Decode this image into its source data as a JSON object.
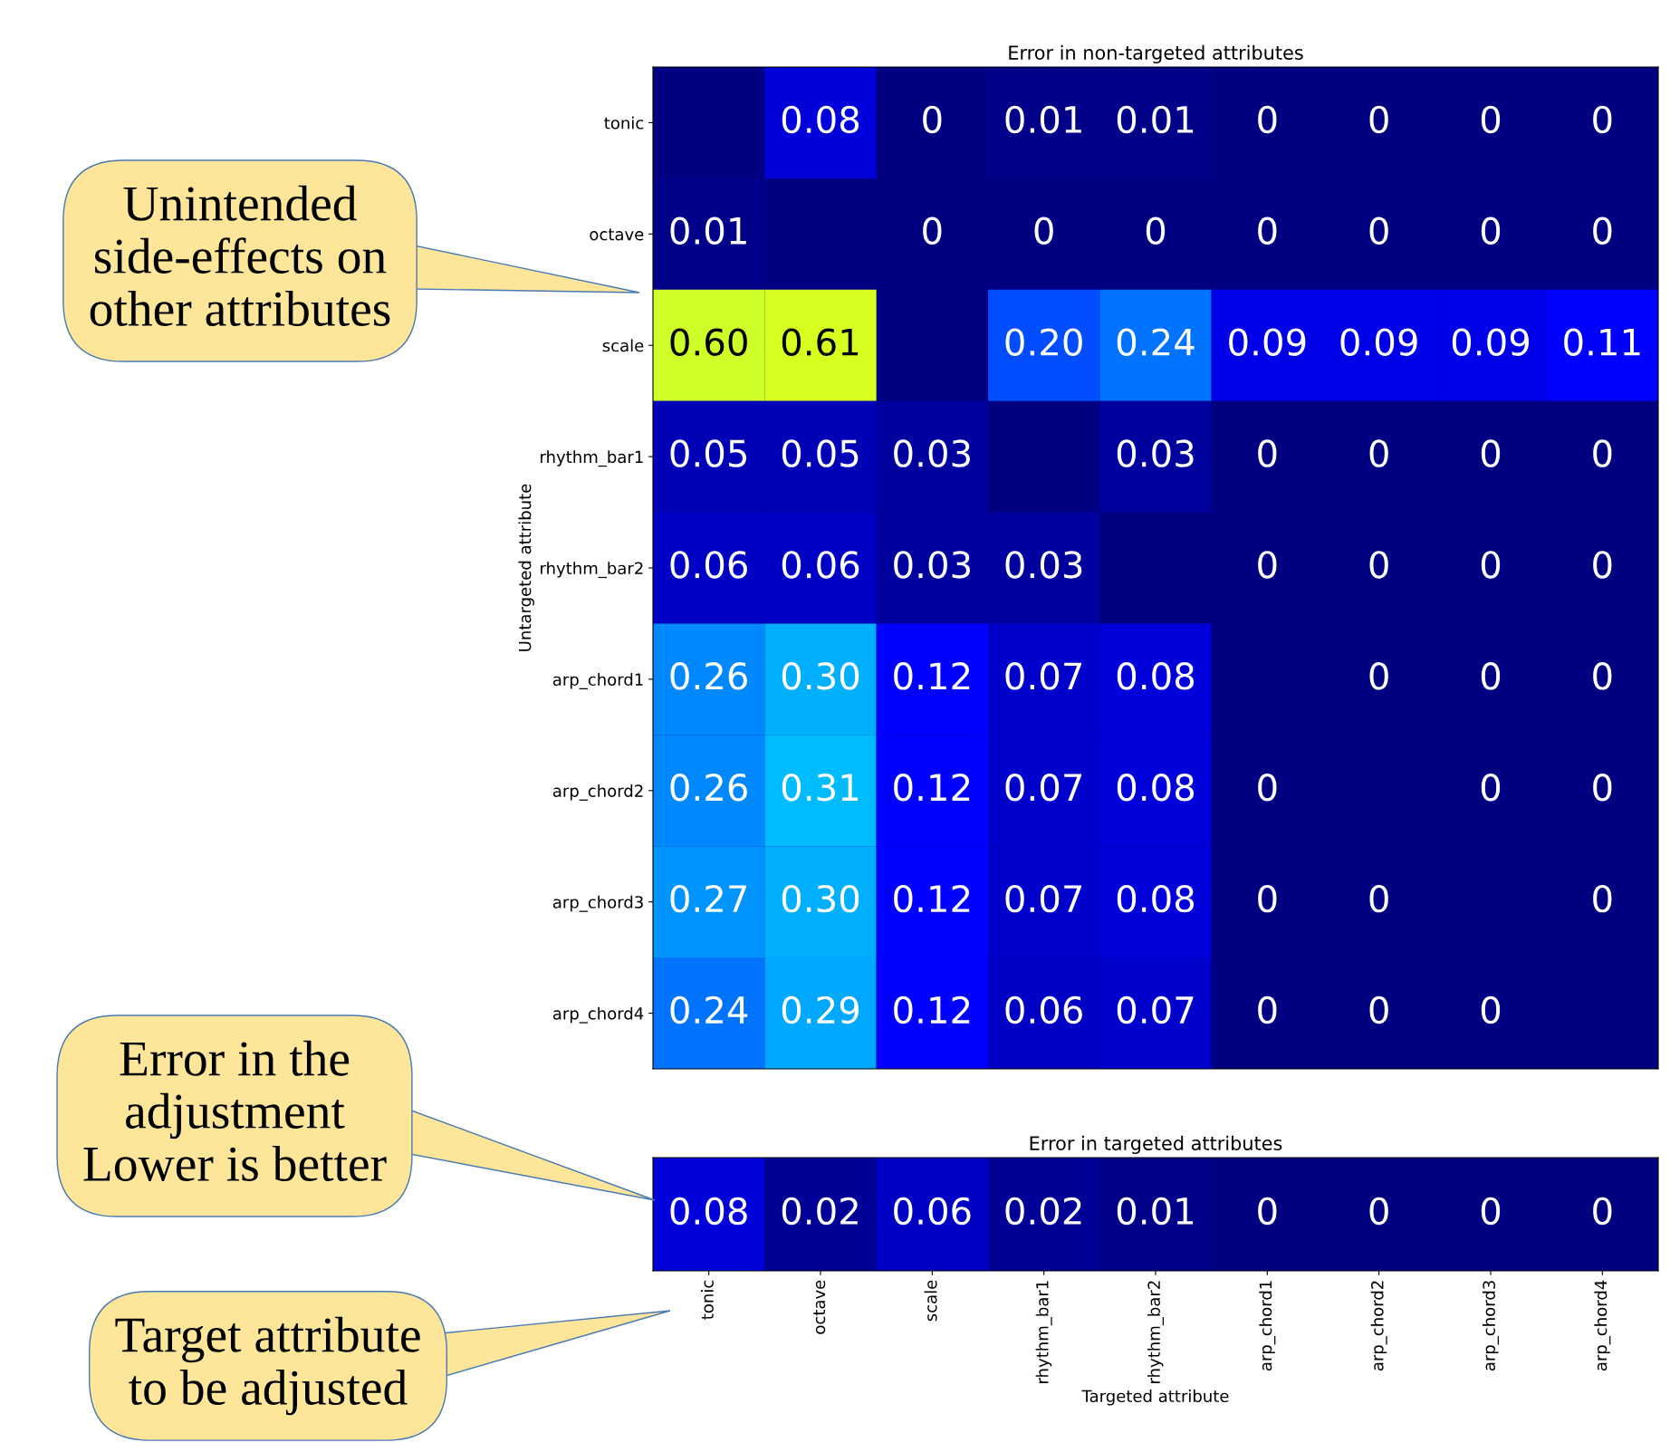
{
  "chart_data": [
    {
      "type": "heatmap",
      "title": "Error in non-targeted attributes",
      "ylabel": "Untargeted attribute",
      "categories": [
        null,
        null,
        null,
        null,
        null,
        null,
        null,
        null,
        null
      ],
      "y_categories": [
        "tonic",
        "octave",
        "scale",
        "rhythm_bar1",
        "rhythm_bar2",
        "arp_chord1",
        "arp_chord2",
        "arp_chord3",
        "arp_chord4"
      ],
      "cells": [
        [
          null,
          0.08,
          0,
          0.01,
          0.01,
          0,
          0,
          0,
          0
        ],
        [
          0.01,
          null,
          0,
          0,
          0,
          0,
          0,
          0,
          0
        ],
        [
          0.6,
          0.61,
          null,
          0.2,
          0.24,
          0.09,
          0.09,
          0.09,
          0.11
        ],
        [
          0.05,
          0.05,
          0.03,
          null,
          0.03,
          0,
          0,
          0,
          0
        ],
        [
          0.06,
          0.06,
          0.03,
          0.03,
          null,
          0,
          0,
          0,
          0
        ],
        [
          0.26,
          0.3,
          0.12,
          0.07,
          0.08,
          null,
          0,
          0,
          0
        ],
        [
          0.26,
          0.31,
          0.12,
          0.07,
          0.08,
          0,
          null,
          0,
          0
        ],
        [
          0.27,
          0.3,
          0.12,
          0.07,
          0.08,
          0,
          0,
          null,
          0
        ],
        [
          0.24,
          0.29,
          0.12,
          0.06,
          0.07,
          0,
          0,
          0,
          null
        ]
      ],
      "cell_labels": [
        [
          null,
          "0.08",
          "0",
          "0.01",
          "0.01",
          "0",
          "0",
          "0",
          "0"
        ],
        [
          "0.01",
          null,
          "0",
          "0",
          "0",
          "0",
          "0",
          "0",
          "0"
        ],
        [
          "0.60",
          "0.61",
          null,
          "0.20",
          "0.24",
          "0.09",
          "0.09",
          "0.09",
          "0.11"
        ],
        [
          "0.05",
          "0.05",
          "0.03",
          null,
          "0.03",
          "0",
          "0",
          "0",
          "0"
        ],
        [
          "0.06",
          "0.06",
          "0.03",
          "0.03",
          null,
          "0",
          "0",
          "0",
          "0"
        ],
        [
          "0.26",
          "0.30",
          "0.12",
          "0.07",
          "0.08",
          null,
          "0",
          "0",
          "0"
        ],
        [
          "0.26",
          "0.31",
          "0.12",
          "0.07",
          "0.08",
          "0",
          null,
          "0",
          "0"
        ],
        [
          "0.27",
          "0.30",
          "0.12",
          "0.07",
          "0.08",
          "0",
          "0",
          null,
          "0"
        ],
        [
          "0.24",
          "0.29",
          "0.12",
          "0.06",
          "0.07",
          "0",
          "0",
          "0",
          null
        ]
      ],
      "tick_labels": "y",
      "annotations": [
        "Unintended\nside-effects on\nother attributes"
      ]
    },
    {
      "type": "heatmap",
      "title": "Error in targeted attributes",
      "xlabel": "Targeted attribute",
      "categories": [
        "tonic",
        "octave",
        "scale",
        "rhythm_bar1",
        "rhythm_bar2",
        "arp_chord1",
        "arp_chord2",
        "arp_chord3",
        "arp_chord4"
      ],
      "y_categories": [
        null
      ],
      "cells": [
        [
          0.08,
          0.02,
          0.06,
          0.02,
          0.01,
          0,
          0,
          0,
          0
        ]
      ],
      "cell_labels": [
        [
          "0.08",
          "0.02",
          "0.06",
          "0.02",
          "0.01",
          "0",
          "0",
          "0",
          "0"
        ]
      ],
      "tick_labels": "x",
      "annotations": [
        "Error in the\nadjustment\nLower is better",
        "Target attribute\nto be adjusted"
      ]
    }
  ]
}
